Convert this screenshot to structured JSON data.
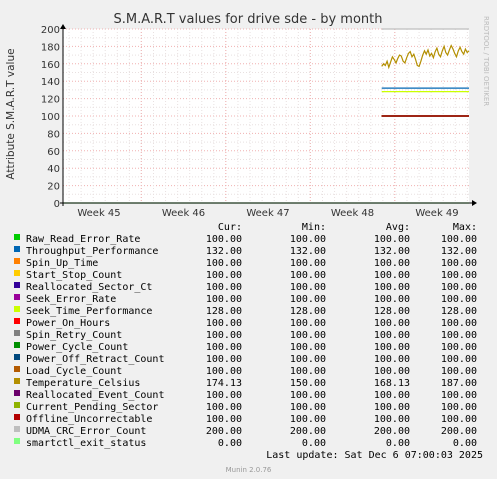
{
  "chart_data": {
    "type": "line",
    "title": "S.M.A.R.T values for drive sde - by month",
    "ylabel": "Attribute S.M.A.R.T value",
    "xlabel": "",
    "ylim": [
      0,
      200
    ],
    "yticks": [
      "0",
      "20",
      "40",
      "60",
      "80",
      "100",
      "120",
      "140",
      "160",
      "180",
      "200"
    ],
    "xticks": [
      "Week 45",
      "Week 46",
      "Week 47",
      "Week 48",
      "Week 49"
    ],
    "grid": true,
    "side_label": "RRDTOOL / TOBI OETIKER",
    "data_start_fraction": 0.785,
    "series": [
      {
        "name": "Raw_Read_Error_Rate",
        "color": "#00cc00",
        "cur": "100.00",
        "min": "100.00",
        "avg": "100.00",
        "max": "100.00",
        "value": 100
      },
      {
        "name": "Throughput_Performance",
        "color": "#0066b3",
        "cur": "132.00",
        "min": "132.00",
        "avg": "132.00",
        "max": "132.00",
        "value": 132
      },
      {
        "name": "Spin_Up_Time",
        "color": "#ff8000",
        "cur": "100.00",
        "min": "100.00",
        "avg": "100.00",
        "max": "100.00",
        "value": 100
      },
      {
        "name": "Start_Stop_Count",
        "color": "#ffcc00",
        "cur": "100.00",
        "min": "100.00",
        "avg": "100.00",
        "max": "100.00",
        "value": 100
      },
      {
        "name": "Reallocated_Sector_Ct",
        "color": "#330099",
        "cur": "100.00",
        "min": "100.00",
        "avg": "100.00",
        "max": "100.00",
        "value": 100
      },
      {
        "name": "Seek_Error_Rate",
        "color": "#990099",
        "cur": "100.00",
        "min": "100.00",
        "avg": "100.00",
        "max": "100.00",
        "value": 100
      },
      {
        "name": "Seek_Time_Performance",
        "color": "#ccff00",
        "cur": "128.00",
        "min": "128.00",
        "avg": "128.00",
        "max": "128.00",
        "value": 128
      },
      {
        "name": "Power_On_Hours",
        "color": "#ff0000",
        "cur": "100.00",
        "min": "100.00",
        "avg": "100.00",
        "max": "100.00",
        "value": 100
      },
      {
        "name": "Spin_Retry_Count",
        "color": "#808080",
        "cur": "100.00",
        "min": "100.00",
        "avg": "100.00",
        "max": "100.00",
        "value": 100
      },
      {
        "name": "Power_Cycle_Count",
        "color": "#008f00",
        "cur": "100.00",
        "min": "100.00",
        "avg": "100.00",
        "max": "100.00",
        "value": 100
      },
      {
        "name": "Power_Off_Retract_Count",
        "color": "#00487d",
        "cur": "100.00",
        "min": "100.00",
        "avg": "100.00",
        "max": "100.00",
        "value": 100
      },
      {
        "name": "Load_Cycle_Count",
        "color": "#b35a00",
        "cur": "100.00",
        "min": "100.00",
        "avg": "100.00",
        "max": "100.00",
        "value": 100
      },
      {
        "name": "Temperature_Celsius",
        "color": "#b38f00",
        "cur": "174.13",
        "min": "150.00",
        "avg": "168.13",
        "max": "187.00",
        "values": [
          157,
          160,
          158,
          163,
          156,
          162,
          168,
          165,
          161,
          166,
          170,
          169,
          163,
          161,
          167,
          172,
          174,
          168,
          171,
          165,
          158,
          157,
          163,
          170,
          175,
          171,
          176,
          169,
          172,
          167,
          174,
          178,
          171,
          168,
          175,
          180,
          173,
          170,
          176,
          181,
          177,
          172,
          168,
          175,
          179,
          174,
          171,
          177,
          173,
          175
        ]
      },
      {
        "name": "Reallocated_Event_Count",
        "color": "#6b006b",
        "cur": "100.00",
        "min": "100.00",
        "avg": "100.00",
        "max": "100.00",
        "value": 100
      },
      {
        "name": "Current_Pending_Sector",
        "color": "#8fb300",
        "cur": "100.00",
        "min": "100.00",
        "avg": "100.00",
        "max": "100.00",
        "value": 100
      },
      {
        "name": "Offline_Uncorrectable",
        "color": "#b30000",
        "cur": "100.00",
        "min": "100.00",
        "avg": "100.00",
        "max": "100.00",
        "value": 100
      },
      {
        "name": "UDMA_CRC_Error_Count",
        "color": "#bebebe",
        "cur": "200.00",
        "min": "200.00",
        "avg": "200.00",
        "max": "200.00",
        "value": 200
      },
      {
        "name": "smartctl_exit_status",
        "color": "#80ff80",
        "cur": "0.00",
        "min": "0.00",
        "avg": "0.00",
        "max": "0.00",
        "value": 0
      }
    ]
  },
  "legend": {
    "headers": {
      "cur": "Cur:",
      "min": "Min:",
      "avg": "Avg:",
      "max": "Max:"
    }
  },
  "footer": {
    "last_update": "Last update: Sat Dec  6 07:00:03 2025",
    "version": "Munin 2.0.76"
  }
}
